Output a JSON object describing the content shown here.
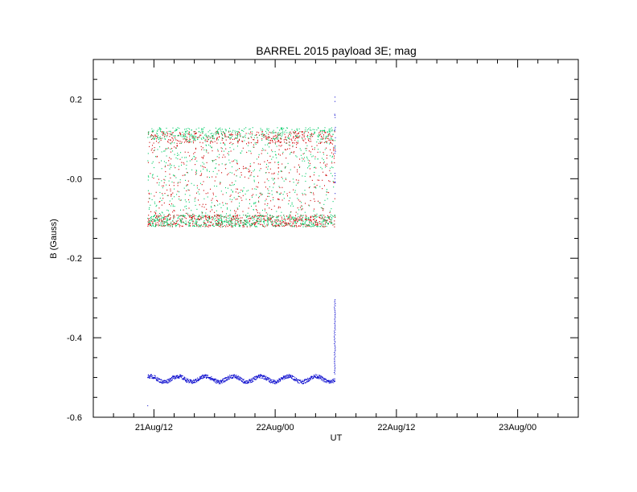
{
  "chart_data": {
    "type": "scatter",
    "title": "BARREL 2015 payload 3E; mag",
    "xlabel": "UT",
    "ylabel": "B (Gauss)",
    "x_tick_labels": [
      "21Aug/12",
      "22Aug/00",
      "22Aug/12",
      "23Aug/00"
    ],
    "y_tick_labels": [
      "0.2",
      "-0.0",
      "-0.2",
      "-0.4",
      "-0.6"
    ],
    "y_tick_values": [
      0.2,
      0.0,
      -0.2,
      -0.4,
      -0.6
    ],
    "xlim_hours_from_21Aug00": [
      6,
      24
    ],
    "ylim": [
      -0.6,
      0.3
    ],
    "grid": false,
    "series": [
      {
        "color": "#cc0000",
        "start_hour": 11.35,
        "end_hour": 29.9,
        "min": -0.12,
        "max": 0.12,
        "mean": -0.01
      },
      {
        "color": "#00cc66",
        "start_hour": 11.35,
        "end_hour": 29.9,
        "min": -0.12,
        "max": 0.13,
        "mean": 0.0
      },
      {
        "color": "#0000cc",
        "start_hour": 11.35,
        "end_hour": 30.2,
        "min": -0.57,
        "max": -0.49,
        "mean": -0.503,
        "end_spike_max": 0.21
      }
    ]
  }
}
